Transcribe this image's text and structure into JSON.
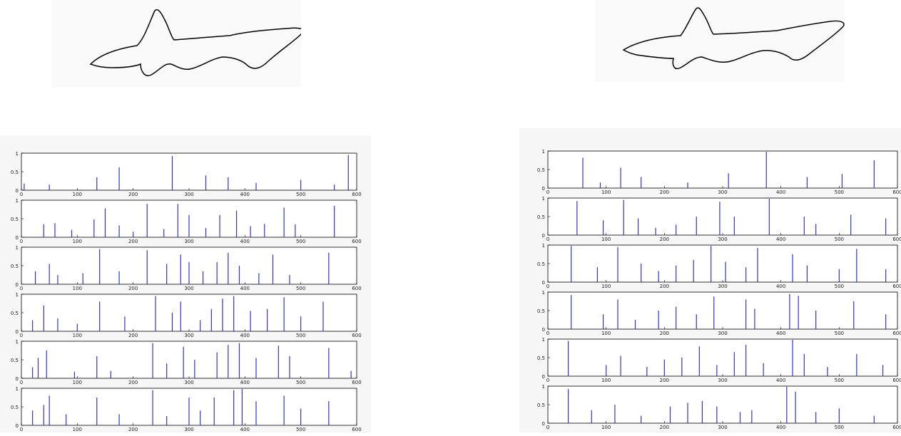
{
  "figure": {
    "left_shape": {
      "kind": "shark-silhouette",
      "outline_color": "#000000"
    },
    "right_shape": {
      "kind": "shark-silhouette",
      "outline_color": "#000000"
    }
  },
  "chart_data": [
    {
      "type": "bar",
      "group": "left",
      "line_color": "#3333cc",
      "xlim": [
        0,
        600
      ],
      "xticks": [
        "0",
        "100",
        "200",
        "300",
        "400",
        "500",
        "600"
      ],
      "ylim": [
        0,
        1
      ],
      "yticks": [
        "0",
        "0.5",
        "1"
      ],
      "subplots": [
        {
          "spikes": [
            [
              5,
              0.18
            ],
            [
              50,
              0.15
            ],
            [
              135,
              0.35
            ],
            [
              175,
              0.62
            ],
            [
              270,
              0.92
            ],
            [
              330,
              0.4
            ],
            [
              370,
              0.35
            ],
            [
              420,
              0.2
            ],
            [
              500,
              0.28
            ],
            [
              560,
              0.15
            ],
            [
              585,
              0.95
            ]
          ]
        },
        {
          "spikes": [
            [
              40,
              0.35
            ],
            [
              60,
              0.38
            ],
            [
              90,
              0.2
            ],
            [
              130,
              0.48
            ],
            [
              150,
              0.78
            ],
            [
              175,
              0.32
            ],
            [
              200,
              0.15
            ],
            [
              225,
              0.9
            ],
            [
              255,
              0.22
            ],
            [
              280,
              0.9
            ],
            [
              300,
              0.6
            ],
            [
              330,
              0.25
            ],
            [
              355,
              0.6
            ],
            [
              385,
              0.72
            ],
            [
              410,
              0.3
            ],
            [
              435,
              0.36
            ],
            [
              470,
              0.8
            ],
            [
              490,
              0.35
            ],
            [
              560,
              0.85
            ]
          ]
        },
        {
          "spikes": [
            [
              25,
              0.35
            ],
            [
              50,
              0.55
            ],
            [
              65,
              0.25
            ],
            [
              110,
              0.3
            ],
            [
              140,
              0.95
            ],
            [
              175,
              0.35
            ],
            [
              225,
              0.92
            ],
            [
              260,
              0.55
            ],
            [
              285,
              0.8
            ],
            [
              300,
              0.6
            ],
            [
              325,
              0.35
            ],
            [
              350,
              0.6
            ],
            [
              370,
              0.85
            ],
            [
              390,
              0.5
            ],
            [
              425,
              0.3
            ],
            [
              450,
              0.8
            ],
            [
              480,
              0.25
            ],
            [
              550,
              0.85
            ]
          ]
        },
        {
          "spikes": [
            [
              20,
              0.3
            ],
            [
              40,
              0.7
            ],
            [
              65,
              0.35
            ],
            [
              100,
              0.2
            ],
            [
              140,
              0.8
            ],
            [
              185,
              0.4
            ],
            [
              240,
              0.95
            ],
            [
              270,
              0.5
            ],
            [
              285,
              0.8
            ],
            [
              320,
              0.3
            ],
            [
              340,
              0.6
            ],
            [
              360,
              0.88
            ],
            [
              380,
              0.95
            ],
            [
              410,
              0.55
            ],
            [
              440,
              0.6
            ],
            [
              470,
              0.92
            ],
            [
              500,
              0.4
            ],
            [
              540,
              0.8
            ]
          ]
        },
        {
          "spikes": [
            [
              20,
              0.3
            ],
            [
              30,
              0.55
            ],
            [
              45,
              0.75
            ],
            [
              95,
              0.18
            ],
            [
              135,
              0.6
            ],
            [
              160,
              0.2
            ],
            [
              235,
              0.95
            ],
            [
              260,
              0.4
            ],
            [
              290,
              0.85
            ],
            [
              310,
              0.5
            ],
            [
              350,
              0.7
            ],
            [
              370,
              0.9
            ],
            [
              390,
              0.95
            ],
            [
              420,
              0.55
            ],
            [
              460,
              0.88
            ],
            [
              480,
              0.6
            ],
            [
              550,
              0.82
            ],
            [
              590,
              0.2
            ]
          ]
        },
        {
          "spikes": [
            [
              20,
              0.4
            ],
            [
              40,
              0.55
            ],
            [
              50,
              0.8
            ],
            [
              80,
              0.3
            ],
            [
              135,
              0.75
            ],
            [
              175,
              0.3
            ],
            [
              235,
              0.95
            ],
            [
              260,
              0.25
            ],
            [
              300,
              0.75
            ],
            [
              320,
              0.4
            ],
            [
              345,
              0.75
            ],
            [
              380,
              0.95
            ],
            [
              395,
              0.98
            ],
            [
              420,
              0.65
            ],
            [
              470,
              0.8
            ],
            [
              500,
              0.45
            ],
            [
              550,
              0.65
            ]
          ]
        }
      ]
    },
    {
      "type": "bar",
      "group": "right",
      "line_color": "#3333cc",
      "xlim": [
        0,
        600
      ],
      "xticks": [
        "0",
        "100",
        "200",
        "300",
        "400",
        "500",
        "600"
      ],
      "ylim": [
        0,
        1
      ],
      "yticks": [
        "0",
        "0.5",
        "1"
      ],
      "subplots": [
        {
          "spikes": [
            [
              60,
              0.82
            ],
            [
              90,
              0.15
            ],
            [
              125,
              0.55
            ],
            [
              160,
              0.3
            ],
            [
              240,
              0.15
            ],
            [
              310,
              0.4
            ],
            [
              375,
              0.98
            ],
            [
              445,
              0.3
            ],
            [
              505,
              0.38
            ],
            [
              560,
              0.75
            ]
          ]
        },
        {
          "spikes": [
            [
              50,
              0.92
            ],
            [
              95,
              0.4
            ],
            [
              130,
              0.95
            ],
            [
              155,
              0.45
            ],
            [
              185,
              0.2
            ],
            [
              220,
              0.28
            ],
            [
              255,
              0.5
            ],
            [
              295,
              0.9
            ],
            [
              320,
              0.5
            ],
            [
              380,
              0.98
            ],
            [
              440,
              0.5
            ],
            [
              460,
              0.3
            ],
            [
              520,
              0.55
            ],
            [
              580,
              0.45
            ]
          ]
        },
        {
          "spikes": [
            [
              40,
              0.98
            ],
            [
              85,
              0.4
            ],
            [
              120,
              0.95
            ],
            [
              160,
              0.5
            ],
            [
              190,
              0.3
            ],
            [
              220,
              0.45
            ],
            [
              250,
              0.6
            ],
            [
              280,
              0.98
            ],
            [
              305,
              0.55
            ],
            [
              340,
              0.4
            ],
            [
              360,
              0.92
            ],
            [
              420,
              0.75
            ],
            [
              445,
              0.45
            ],
            [
              500,
              0.35
            ],
            [
              530,
              0.9
            ],
            [
              580,
              0.35
            ]
          ]
        },
        {
          "spikes": [
            [
              40,
              0.92
            ],
            [
              95,
              0.4
            ],
            [
              120,
              0.8
            ],
            [
              150,
              0.25
            ],
            [
              190,
              0.5
            ],
            [
              220,
              0.6
            ],
            [
              255,
              0.4
            ],
            [
              285,
              0.88
            ],
            [
              340,
              0.8
            ],
            [
              355,
              0.55
            ],
            [
              415,
              0.95
            ],
            [
              430,
              0.9
            ],
            [
              460,
              0.5
            ],
            [
              525,
              0.75
            ],
            [
              580,
              0.4
            ]
          ]
        },
        {
          "spikes": [
            [
              35,
              0.95
            ],
            [
              100,
              0.3
            ],
            [
              125,
              0.55
            ],
            [
              170,
              0.25
            ],
            [
              200,
              0.45
            ],
            [
              230,
              0.5
            ],
            [
              260,
              0.8
            ],
            [
              290,
              0.3
            ],
            [
              320,
              0.65
            ],
            [
              340,
              0.85
            ],
            [
              370,
              0.35
            ],
            [
              420,
              0.98
            ],
            [
              440,
              0.6
            ],
            [
              480,
              0.25
            ],
            [
              530,
              0.6
            ],
            [
              575,
              0.3
            ]
          ]
        },
        {
          "spikes": [
            [
              35,
              0.92
            ],
            [
              75,
              0.35
            ],
            [
              115,
              0.5
            ],
            [
              160,
              0.2
            ],
            [
              210,
              0.45
            ],
            [
              240,
              0.55
            ],
            [
              265,
              0.6
            ],
            [
              290,
              0.45
            ],
            [
              330,
              0.3
            ],
            [
              350,
              0.35
            ],
            [
              410,
              0.98
            ],
            [
              425,
              0.85
            ],
            [
              460,
              0.3
            ],
            [
              500,
              0.4
            ],
            [
              560,
              0.2
            ]
          ]
        }
      ]
    }
  ]
}
